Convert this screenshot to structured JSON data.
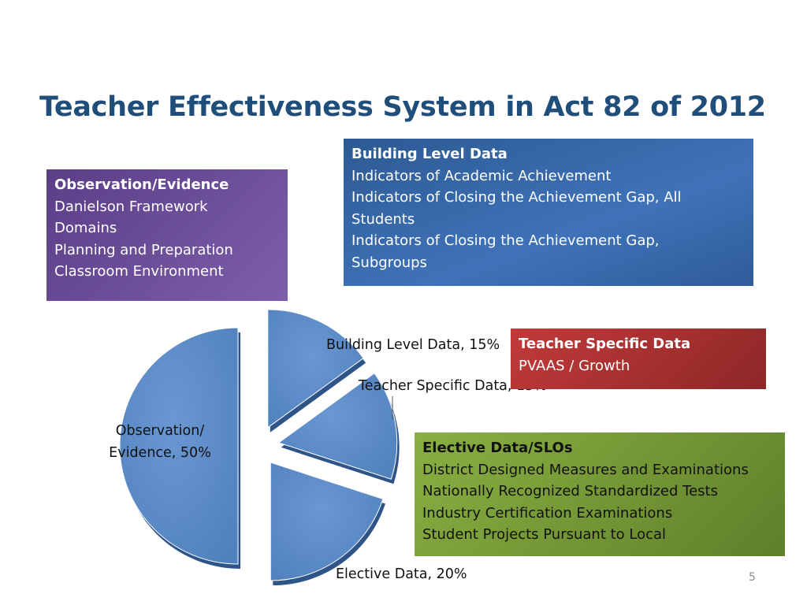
{
  "slide": {
    "title": "Teacher Effectiveness System in Act 82 of 2012",
    "page_number": "5"
  },
  "boxes": {
    "observation": {
      "heading": "Observation/Evidence",
      "lines": [
        "Danielson Framework",
        "Domains",
        "Planning and Preparation",
        "Classroom Environment"
      ],
      "color": "#6b4f9a"
    },
    "building": {
      "heading": "Building Level Data",
      "lines": [
        "Indicators of Academic Achievement",
        "Indicators of Closing the Achievement Gap, All",
        "Students",
        "Indicators of Closing the Achievement Gap,",
        "Subgroups"
      ],
      "color": "#3668a8"
    },
    "teacher": {
      "heading": "Teacher Specific Data",
      "lines": [
        "PVAAS / Growth"
      ],
      "color": "#a83030"
    },
    "elective": {
      "heading": "Elective Data/SLOs",
      "lines": [
        "District Designed Measures and Examinations",
        "Nationally Recognized Standardized Tests",
        "Industry Certification Examinations",
        "Student Projects Pursuant to Local"
      ],
      "color": "#7a9a36"
    }
  },
  "chart_data": {
    "type": "pie",
    "exploded": true,
    "slice_color": "#4f81bd",
    "slices": [
      {
        "name": "Building Level Data",
        "value": 15,
        "label": "Building Level Data,  15%"
      },
      {
        "name": "Teacher Specific Data",
        "value": 15,
        "label": "Teacher Specific Data, 15%"
      },
      {
        "name": "Elective Data",
        "value": 20,
        "label": "Elective Data,  20%"
      },
      {
        "name": "Observation/ Evidence",
        "value": 50,
        "label_lines": [
          "Observation/",
          "Evidence, 50%"
        ]
      }
    ]
  }
}
